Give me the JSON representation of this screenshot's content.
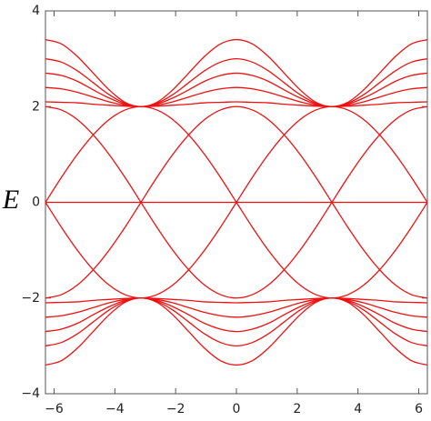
{
  "chart_data": {
    "type": "line",
    "ylabel": "E",
    "color": "#ee1111",
    "xlim": [
      -6.2832,
      6.2832
    ],
    "ylim": [
      -4,
      4
    ],
    "xticks": [
      {
        "value": -6,
        "label": "−6"
      },
      {
        "value": -4,
        "label": "−4"
      },
      {
        "value": -2,
        "label": "−2"
      },
      0,
      2,
      4,
      6
    ],
    "yticks": [
      {
        "value": -4,
        "label": "−4"
      },
      {
        "value": -2,
        "label": "−2"
      },
      0,
      2,
      4
    ],
    "x": [
      -6.2832,
      -5.7596,
      -5.236,
      -4.7124,
      -4.1888,
      -3.6652,
      -3.1416,
      -2.618,
      -2.0944,
      -1.5708,
      -1.0472,
      -0.5236,
      0,
      0.5236,
      1.0472,
      1.5708,
      2.0944,
      2.618,
      3.1416,
      3.6652,
      4.1888,
      4.7124,
      5.236,
      5.7596,
      6.2832
    ],
    "series": [
      {
        "values": [
          2.1,
          2.09,
          2.08,
          2.05,
          2.03,
          2.01,
          2,
          2.01,
          2.03,
          2.05,
          2.08,
          2.09,
          2.1,
          2.09,
          2.08,
          2.05,
          2.03,
          2.01,
          2,
          2.01,
          2.03,
          2.05,
          2.08,
          2.09,
          2.1
        ]
      },
      {
        "values": [
          2.4,
          2.37,
          2.3,
          2.2,
          2.1,
          2.03,
          2,
          2.03,
          2.1,
          2.2,
          2.3,
          2.37,
          2.4,
          2.37,
          2.3,
          2.2,
          2.1,
          2.03,
          2,
          2.03,
          2.1,
          2.2,
          2.3,
          2.37,
          2.4
        ]
      },
      {
        "values": [
          2.7,
          2.65,
          2.53,
          2.35,
          2.18,
          2.05,
          2,
          2.05,
          2.18,
          2.35,
          2.53,
          2.65,
          2.7,
          2.65,
          2.53,
          2.35,
          2.18,
          2.05,
          2,
          2.05,
          2.18,
          2.35,
          2.53,
          2.65,
          2.7
        ]
      },
      {
        "values": [
          3,
          2.93,
          2.75,
          2.5,
          2.25,
          2.07,
          2,
          2.07,
          2.25,
          2.5,
          2.75,
          2.93,
          3,
          2.93,
          2.75,
          2.5,
          2.25,
          2.07,
          2,
          2.07,
          2.25,
          2.5,
          2.75,
          2.93,
          3
        ]
      },
      {
        "values": [
          3.4,
          3.31,
          3.05,
          2.7,
          2.35,
          2.09,
          2,
          2.09,
          2.35,
          2.7,
          3.05,
          3.31,
          3.4,
          3.31,
          3.05,
          2.7,
          2.35,
          2.09,
          2,
          2.09,
          2.35,
          2.7,
          3.05,
          3.31,
          3.4
        ]
      },
      {
        "values": [
          -2.1,
          -2.09,
          -2.08,
          -2.05,
          -2.03,
          -2.01,
          -2,
          -2.01,
          -2.03,
          -2.05,
          -2.08,
          -2.09,
          -2.1,
          -2.09,
          -2.08,
          -2.05,
          -2.03,
          -2.01,
          -2,
          -2.01,
          -2.03,
          -2.05,
          -2.08,
          -2.09,
          -2.1
        ]
      },
      {
        "values": [
          -2.4,
          -2.37,
          -2.3,
          -2.2,
          -2.1,
          -2.03,
          -2,
          -2.03,
          -2.1,
          -2.2,
          -2.3,
          -2.37,
          -2.4,
          -2.37,
          -2.3,
          -2.2,
          -2.1,
          -2.03,
          -2,
          -2.03,
          -2.1,
          -2.2,
          -2.3,
          -2.37,
          -2.4
        ]
      },
      {
        "values": [
          -2.7,
          -2.65,
          -2.53,
          -2.35,
          -2.18,
          -2.05,
          -2,
          -2.05,
          -2.18,
          -2.35,
          -2.53,
          -2.65,
          -2.7,
          -2.65,
          -2.53,
          -2.35,
          -2.18,
          -2.05,
          -2,
          -2.05,
          -2.18,
          -2.35,
          -2.53,
          -2.65,
          -2.7
        ]
      },
      {
        "values": [
          -3,
          -2.93,
          -2.75,
          -2.5,
          -2.25,
          -2.07,
          -2,
          -2.07,
          -2.25,
          -2.5,
          -2.75,
          -2.93,
          -3,
          -2.93,
          -2.75,
          -2.5,
          -2.25,
          -2.07,
          -2,
          -2.07,
          -2.25,
          -2.5,
          -2.75,
          -2.93,
          -3
        ]
      },
      {
        "values": [
          -3.4,
          -3.31,
          -3.05,
          -2.7,
          -2.35,
          -2.09,
          -2,
          -2.09,
          -2.35,
          -2.7,
          -3.05,
          -3.31,
          -3.4,
          -3.31,
          -3.05,
          -2.7,
          -2.35,
          -2.09,
          -2,
          -2.09,
          -2.35,
          -2.7,
          -3.05,
          -3.31,
          -3.4
        ]
      },
      {
        "values": [
          0,
          0,
          0,
          0,
          0,
          0,
          0,
          0,
          0,
          0,
          0,
          0,
          0,
          0,
          0,
          0,
          0,
          0,
          0,
          0,
          0,
          0,
          0,
          0,
          0
        ]
      },
      {
        "values": [
          0,
          -0.52,
          -1,
          -1.41,
          -1.73,
          -1.93,
          -2,
          -1.93,
          -1.73,
          -1.41,
          -1,
          -0.52,
          0,
          0.52,
          1,
          1.41,
          1.73,
          1.93,
          2,
          1.93,
          1.73,
          1.41,
          1,
          0.52,
          0
        ]
      },
      {
        "values": [
          0,
          0.52,
          1,
          1.41,
          1.73,
          1.93,
          2,
          1.93,
          1.73,
          1.41,
          1,
          0.52,
          0,
          -0.52,
          -1,
          -1.41,
          -1.73,
          -1.93,
          -2,
          -1.93,
          -1.73,
          -1.41,
          -1,
          -0.52,
          0
        ]
      },
      {
        "values": [
          -2,
          -1.93,
          -1.73,
          -1.41,
          -1,
          -0.52,
          0,
          0.52,
          1,
          1.41,
          1.73,
          1.93,
          2,
          1.93,
          1.73,
          1.41,
          1,
          0.52,
          0,
          -0.52,
          -1,
          -1.41,
          -1.73,
          -1.93,
          -2
        ]
      },
      {
        "values": [
          2,
          1.93,
          1.73,
          1.41,
          1,
          0.52,
          0,
          -0.52,
          -1,
          -1.41,
          -1.73,
          -1.93,
          -2,
          -1.93,
          -1.73,
          -1.41,
          -1,
          -0.52,
          0,
          0.52,
          1,
          1.41,
          1.73,
          1.93,
          2
        ]
      }
    ]
  }
}
